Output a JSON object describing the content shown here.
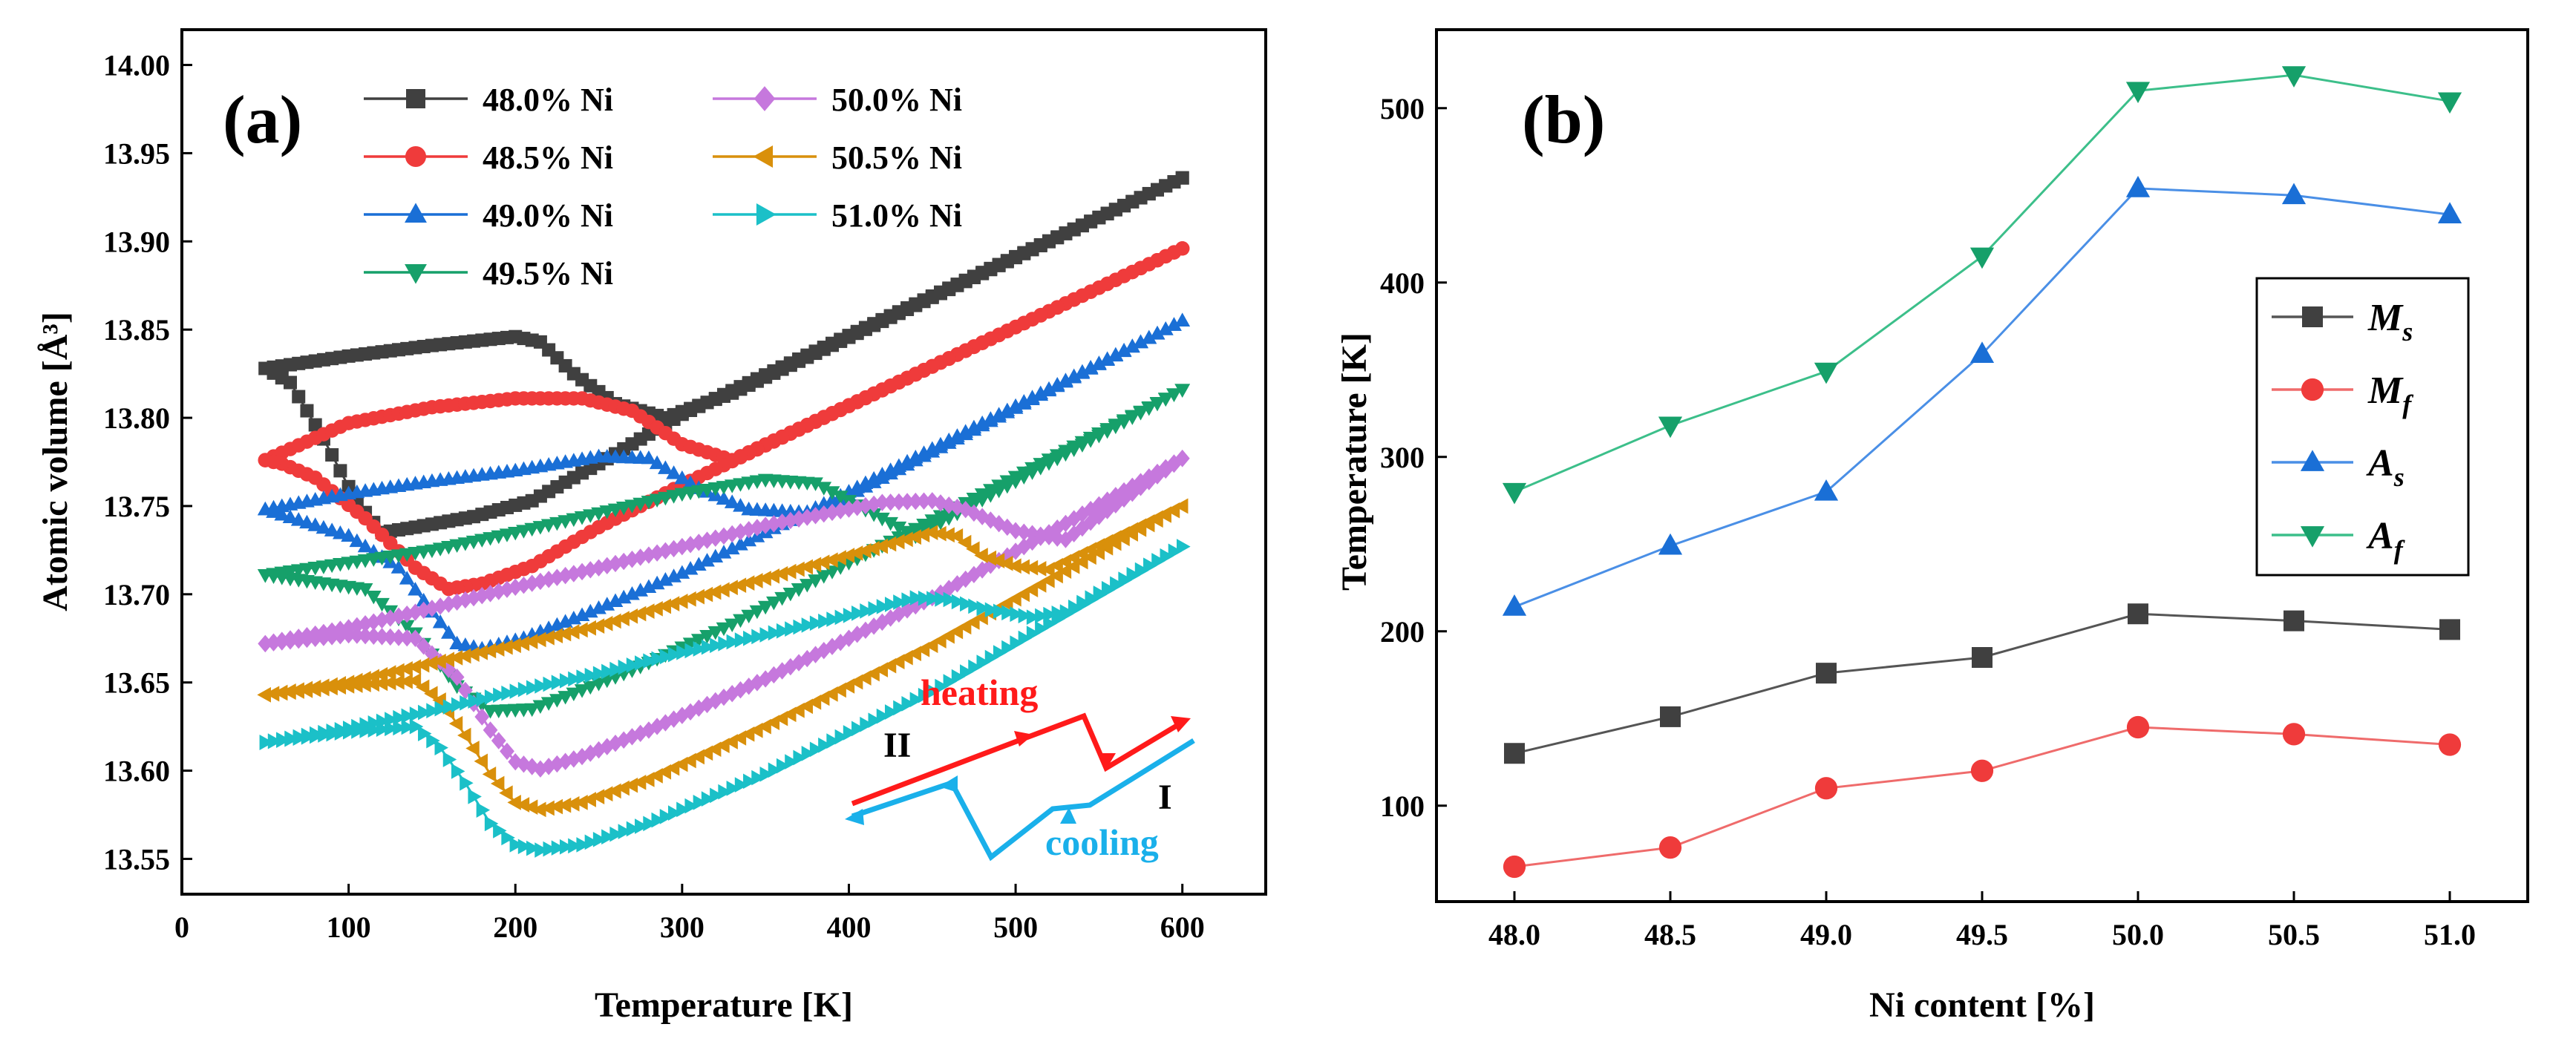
{
  "chart_data": [
    {
      "type": "line",
      "panel_label": "(a)",
      "xlabel": "Temperature [K]",
      "ylabel": "Atomic volume [Å³]",
      "xlim": [
        0,
        650
      ],
      "ylim": [
        13.53,
        14.02
      ],
      "xticks": [
        0,
        100,
        200,
        300,
        400,
        500,
        600
      ],
      "yticks": [
        13.55,
        13.6,
        13.65,
        13.7,
        13.75,
        13.8,
        13.85,
        13.9,
        13.95,
        14.0
      ],
      "ytick_labels": [
        "13.55",
        "13.60",
        "13.65",
        "13.70",
        "13.75",
        "13.80",
        "13.85",
        "13.90",
        "13.95",
        "14.00"
      ],
      "legend": [
        {
          "name": "48.0% Ni",
          "color": "#404040",
          "marker": "square"
        },
        {
          "name": "48.5% Ni",
          "color": "#ef3b3b",
          "marker": "circle"
        },
        {
          "name": "49.0% Ni",
          "color": "#1a6fd6",
          "marker": "triangle-up"
        },
        {
          "name": "49.5% Ni",
          "color": "#16a06a",
          "marker": "triangle-down"
        },
        {
          "name": "50.0% Ni",
          "color": "#c678dd",
          "marker": "diamond"
        },
        {
          "name": "50.5% Ni",
          "color": "#d9900b",
          "marker": "triangle-left"
        },
        {
          "name": "51.0% Ni",
          "color": "#1bc0c8",
          "marker": "triangle-right"
        }
      ],
      "series": [
        {
          "name": "48.0% Ni",
          "heating": [
            [
              50,
              13.828
            ],
            [
              100,
              13.835
            ],
            [
              150,
              13.841
            ],
            [
              200,
              13.846
            ],
            [
              215,
              13.843
            ],
            [
              235,
              13.825
            ],
            [
              260,
              13.808
            ],
            [
              290,
              13.8
            ],
            [
              330,
              13.814
            ],
            [
              600,
              13.936
            ]
          ],
          "cooling": [
            [
              600,
              13.936
            ],
            [
              300,
              13.802
            ],
            [
              250,
              13.774
            ],
            [
              210,
              13.753
            ],
            [
              175,
              13.744
            ],
            [
              140,
              13.738
            ],
            [
              120,
              13.735
            ],
            [
              105,
              13.752
            ],
            [
              85,
              13.788
            ],
            [
              65,
              13.82
            ],
            [
              50,
              13.828
            ]
          ]
        },
        {
          "name": "48.5% Ni",
          "heating": [
            [
              50,
              13.776
            ],
            [
              100,
              13.797
            ],
            [
              150,
              13.806
            ],
            [
              200,
              13.811
            ],
            [
              240,
              13.811
            ],
            [
              270,
              13.804
            ],
            [
              300,
              13.785
            ],
            [
              330,
              13.776
            ],
            [
              600,
              13.896
            ]
          ],
          "cooling": [
            [
              600,
              13.896
            ],
            [
              300,
              13.762
            ],
            [
              250,
              13.738
            ],
            [
              210,
              13.716
            ],
            [
              180,
              13.706
            ],
            [
              160,
              13.703
            ],
            [
              140,
              13.715
            ],
            [
              110,
              13.743
            ],
            [
              80,
              13.766
            ],
            [
              60,
              13.774
            ],
            [
              50,
              13.776
            ]
          ]
        },
        {
          "name": "49.0% Ni",
          "heating": [
            [
              50,
              13.748
            ],
            [
              100,
              13.757
            ],
            [
              150,
              13.764
            ],
            [
              200,
              13.77
            ],
            [
              250,
              13.778
            ],
            [
              280,
              13.777
            ],
            [
              310,
              13.76
            ],
            [
              340,
              13.748
            ],
            [
              380,
              13.746
            ],
            [
              600,
              13.855
            ]
          ],
          "cooling": [
            [
              600,
              13.855
            ],
            [
              400,
              13.758
            ],
            [
              300,
              13.712
            ],
            [
              240,
              13.688
            ],
            [
              205,
              13.675
            ],
            [
              180,
              13.669
            ],
            [
              165,
              13.672
            ],
            [
              150,
              13.69
            ],
            [
              130,
              13.715
            ],
            [
              100,
              13.733
            ],
            [
              50,
              13.748
            ]
          ]
        },
        {
          "name": "49.5% Ni",
          "heating": [
            [
              50,
              13.711
            ],
            [
              100,
              13.718
            ],
            [
              150,
              13.725
            ],
            [
              200,
              13.735
            ],
            [
              250,
              13.746
            ],
            [
              300,
              13.757
            ],
            [
              350,
              13.765
            ],
            [
              380,
              13.763
            ],
            [
              410,
              13.748
            ],
            [
              440,
              13.733
            ],
            [
              600,
              13.816
            ]
          ],
          "cooling": [
            [
              600,
              13.816
            ],
            [
              450,
              13.742
            ],
            [
              400,
              13.718
            ],
            [
              330,
              13.683
            ],
            [
              270,
              13.657
            ],
            [
              230,
              13.642
            ],
            [
              210,
              13.635
            ],
            [
              185,
              13.634
            ],
            [
              165,
              13.648
            ],
            [
              140,
              13.678
            ],
            [
              110,
              13.703
            ],
            [
              50,
              13.711
            ]
          ]
        },
        {
          "name": "50.0% Ni",
          "heating": [
            [
              50,
              13.672
            ],
            [
              100,
              13.681
            ],
            [
              150,
              13.692
            ],
            [
              200,
              13.704
            ],
            [
              250,
              13.715
            ],
            [
              300,
              13.727
            ],
            [
              350,
              13.739
            ],
            [
              420,
              13.752
            ],
            [
              450,
              13.753
            ],
            [
              470,
              13.748
            ],
            [
              500,
              13.736
            ],
            [
              530,
              13.731
            ],
            [
              600,
              13.777
            ]
          ],
          "cooling": [
            [
              600,
              13.777
            ],
            [
              450,
              13.698
            ],
            [
              350,
              13.652
            ],
            [
              280,
              13.623
            ],
            [
              240,
              13.608
            ],
            [
              215,
              13.601
            ],
            [
              200,
              13.605
            ],
            [
              185,
              13.623
            ],
            [
              165,
              13.653
            ],
            [
              140,
              13.675
            ],
            [
              100,
              13.677
            ],
            [
              50,
              13.672
            ]
          ]
        },
        {
          "name": "50.5% Ni",
          "heating": [
            [
              50,
              13.643
            ],
            [
              100,
              13.65
            ],
            [
              150,
              13.661
            ],
            [
              200,
              13.671
            ],
            [
              250,
              13.682
            ],
            [
              300,
              13.696
            ],
            [
              350,
              13.709
            ],
            [
              400,
              13.722
            ],
            [
              450,
              13.735
            ],
            [
              465,
              13.733
            ],
            [
              480,
              13.722
            ],
            [
              500,
              13.716
            ],
            [
              520,
              13.714
            ],
            [
              600,
              13.75
            ]
          ],
          "cooling": [
            [
              600,
              13.75
            ],
            [
              450,
              13.671
            ],
            [
              350,
              13.625
            ],
            [
              280,
              13.595
            ],
            [
              240,
              13.582
            ],
            [
              215,
              13.578
            ],
            [
              200,
              13.582
            ],
            [
              185,
              13.598
            ],
            [
              170,
              13.62
            ],
            [
              155,
              13.64
            ],
            [
              140,
              13.651
            ],
            [
              100,
              13.648
            ],
            [
              50,
              13.643
            ]
          ]
        },
        {
          "name": "51.0% Ni",
          "heating": [
            [
              50,
              13.616
            ],
            [
              100,
              13.624
            ],
            [
              150,
              13.634
            ],
            [
              200,
              13.645
            ],
            [
              250,
              13.655
            ],
            [
              300,
              13.667
            ],
            [
              350,
              13.677
            ],
            [
              400,
              13.688
            ],
            [
              440,
              13.698
            ],
            [
              460,
              13.697
            ],
            [
              480,
              13.692
            ],
            [
              510,
              13.687
            ],
            [
              530,
              13.69
            ],
            [
              600,
              13.727
            ]
          ],
          "cooling": [
            [
              600,
              13.727
            ],
            [
              450,
              13.645
            ],
            [
              350,
              13.598
            ],
            [
              280,
              13.57
            ],
            [
              240,
              13.558
            ],
            [
              215,
              13.555
            ],
            [
              200,
              13.558
            ],
            [
              185,
              13.57
            ],
            [
              170,
              13.593
            ],
            [
              155,
              13.613
            ],
            [
              140,
              13.625
            ],
            [
              100,
              13.622
            ],
            [
              50,
              13.616
            ]
          ]
        }
      ],
      "annotations": {
        "heating": "heating",
        "cooling": "cooling",
        "stage_ii": "II",
        "stage_i": "I"
      },
      "annotation_colors": {
        "heating": "#ff1a1a",
        "cooling": "#1ab0ea"
      }
    },
    {
      "type": "line",
      "panel_label": "(b)",
      "xlabel": "Ni content [%]",
      "ylabel": "Temperature [K]",
      "xlim": [
        47.75,
        51.25
      ],
      "ylim": [
        45,
        545
      ],
      "xticks": [
        48.0,
        48.5,
        49.0,
        49.5,
        50.0,
        50.5,
        51.0
      ],
      "xtick_labels": [
        "48.0",
        "48.5",
        "49.0",
        "49.5",
        "50.0",
        "50.5",
        "51.0"
      ],
      "yticks": [
        100,
        200,
        300,
        400,
        500
      ],
      "categories": [
        48.0,
        48.5,
        49.0,
        49.5,
        50.0,
        50.5,
        51.0
      ],
      "legend_position": "right",
      "series": [
        {
          "name": "M",
          "subscript": "s",
          "color": "#404040",
          "line_color": "#555555",
          "marker": "square",
          "values": [
            130,
            151,
            176,
            185,
            210,
            206,
            201
          ]
        },
        {
          "name": "M",
          "subscript": "f",
          "color": "#ef3b3b",
          "line_color": "#ef6b6b",
          "marker": "circle",
          "values": [
            65,
            76,
            110,
            120,
            145,
            141,
            135
          ]
        },
        {
          "name": "A",
          "subscript": "s",
          "color": "#1a6fd6",
          "line_color": "#4a8fe6",
          "marker": "triangle-up",
          "values": [
            214,
            249,
            280,
            359,
            454,
            450,
            439
          ]
        },
        {
          "name": "A",
          "subscript": "f",
          "color": "#16a06a",
          "line_color": "#3cbf8a",
          "marker": "triangle-down",
          "values": [
            280,
            318,
            349,
            415,
            510,
            519,
            504
          ]
        }
      ]
    }
  ]
}
